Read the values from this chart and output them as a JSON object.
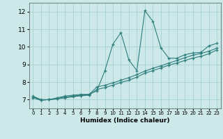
{
  "xlabel": "Humidex (Indice chaleur)",
  "bg_color": "#cce8e8",
  "line_color": "#2d7d7d",
  "grid_color": "#aad4d4",
  "xlim": [
    -0.5,
    23.5
  ],
  "ylim": [
    6.5,
    12.5
  ],
  "xticks": [
    0,
    1,
    2,
    3,
    4,
    5,
    6,
    7,
    8,
    9,
    10,
    11,
    12,
    13,
    14,
    15,
    16,
    17,
    18,
    19,
    20,
    21,
    22,
    23
  ],
  "yticks": [
    7,
    8,
    9,
    10,
    11,
    12
  ],
  "line1_x": [
    0,
    1,
    2,
    3,
    4,
    5,
    6,
    7,
    8,
    9,
    10,
    11,
    12,
    13,
    14,
    15,
    16,
    17,
    18,
    19,
    20,
    21,
    22,
    23
  ],
  "line1_y": [
    7.2,
    7.0,
    7.0,
    7.1,
    7.2,
    7.25,
    7.3,
    7.3,
    7.5,
    8.65,
    10.15,
    10.8,
    9.25,
    8.65,
    12.05,
    11.45,
    9.95,
    9.35,
    9.35,
    9.55,
    9.65,
    9.68,
    10.05,
    10.2
  ],
  "line2_x": [
    0,
    1,
    2,
    3,
    4,
    5,
    6,
    7,
    8,
    9,
    10,
    11,
    12,
    13,
    14,
    15,
    16,
    17,
    18,
    19,
    20,
    21,
    22,
    23
  ],
  "line2_y": [
    7.15,
    6.98,
    7.0,
    7.05,
    7.15,
    7.2,
    7.25,
    7.28,
    7.72,
    7.82,
    7.95,
    8.1,
    8.25,
    8.42,
    8.62,
    8.78,
    8.92,
    9.08,
    9.22,
    9.38,
    9.52,
    9.62,
    9.75,
    9.92
  ],
  "line3_x": [
    0,
    1,
    2,
    3,
    4,
    5,
    6,
    7,
    8,
    9,
    10,
    11,
    12,
    13,
    14,
    15,
    16,
    17,
    18,
    19,
    20,
    21,
    22,
    23
  ],
  "line3_y": [
    7.1,
    6.96,
    7.0,
    7.04,
    7.1,
    7.16,
    7.22,
    7.25,
    7.58,
    7.68,
    7.82,
    7.98,
    8.1,
    8.28,
    8.5,
    8.65,
    8.8,
    8.96,
    9.08,
    9.22,
    9.36,
    9.46,
    9.6,
    9.82
  ]
}
